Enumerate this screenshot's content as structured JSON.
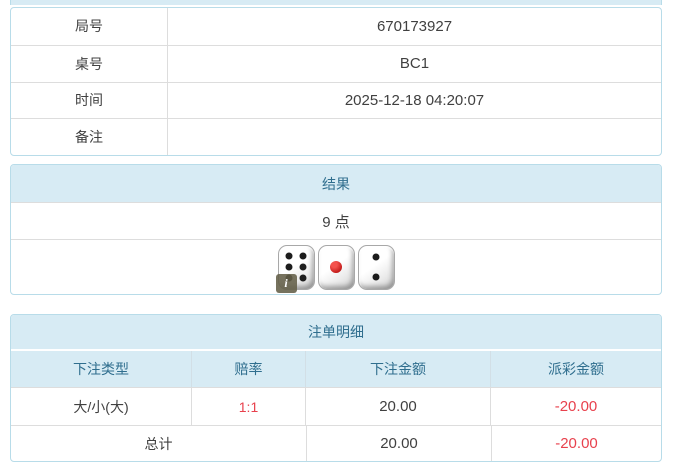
{
  "info_table": {
    "rows": [
      {
        "label": "局号",
        "value": "670173927"
      },
      {
        "label": "桌号",
        "value": "BC1"
      },
      {
        "label": "时间",
        "value": "2025-12-18 04:20:07"
      },
      {
        "label": "备注",
        "value": ""
      }
    ]
  },
  "result_section": {
    "title": "结果",
    "points": "9 点",
    "dice": [
      {
        "value": 6,
        "color": "black"
      },
      {
        "value": 1,
        "color": "red"
      },
      {
        "value": 2,
        "color": "black"
      }
    ],
    "info_badge": "i"
  },
  "bet_table": {
    "title": "注单明细",
    "columns": [
      "下注类型",
      "赔率",
      "下注金额",
      "派彩金额"
    ],
    "rows": [
      {
        "bet_type": "大/小(大)",
        "odds": "1:1",
        "bet_amount": "20.00",
        "payout": "-20.00"
      }
    ],
    "total": {
      "label": "总计",
      "bet_amount": "20.00",
      "payout": "-20.00"
    }
  },
  "colors": {
    "header_bg": "#d7ebf4",
    "header_text": "#2f6e8e",
    "outer_border": "#b8dce9",
    "inner_border": "#dddddd",
    "negative_red": "#e8414d",
    "body_text": "#404040"
  }
}
